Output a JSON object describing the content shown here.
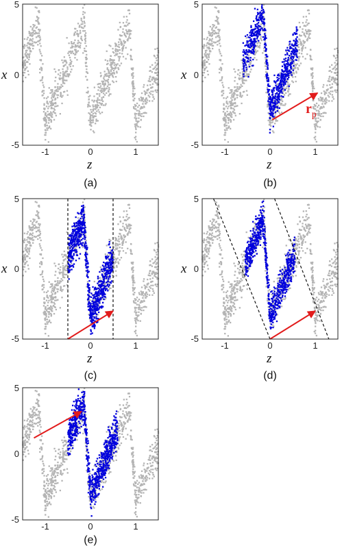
{
  "colors": {
    "background_points": "#b4b4b4",
    "selected_points": "#0000dd",
    "arrow": "#e21b1b",
    "boundary": "#111111"
  },
  "rp_label": {
    "main": "r",
    "subscript": "p"
  },
  "chart_data": [
    {
      "type": "scatter",
      "caption": "(a)",
      "xlabel": "z",
      "ylabel": "x",
      "xlim": [
        -1.5,
        1.5
      ],
      "ylim": [
        -5,
        5
      ],
      "xticks": [
        "-1",
        "0",
        "1"
      ],
      "yticks": [
        "5",
        "0",
        "-5"
      ],
      "series": [
        {
          "color": "gray",
          "pattern": "sawtooth band",
          "x_range": [
            -1.5,
            1.5
          ],
          "y_range": [
            -5,
            5
          ],
          "period": 1.0
        }
      ]
    },
    {
      "type": "scatter",
      "caption": "(b)",
      "xlabel": "z",
      "ylabel": "x",
      "xlim": [
        -1.5,
        1.5
      ],
      "ylim": [
        -5,
        5
      ],
      "xticks": [
        "-1",
        "0",
        "1"
      ],
      "yticks": [
        "5",
        "0",
        "-5"
      ],
      "series": [
        {
          "color": "gray",
          "pattern": "sawtooth band",
          "x_range": [
            -1.5,
            1.5
          ],
          "y_range": [
            -5,
            5
          ]
        },
        {
          "color": "blue",
          "pattern": "selected primitive cell (shifted)",
          "x_range": [
            -0.6,
            0.6
          ],
          "y_range": [
            -4.7,
            5
          ]
        }
      ],
      "arrow": {
        "from": [
          0.05,
          -3.2
        ],
        "to": [
          1.05,
          -1.3
        ],
        "label": "r_p"
      }
    },
    {
      "type": "scatter",
      "caption": "(c)",
      "xlabel": "z",
      "ylabel": "x",
      "xlim": [
        -1.5,
        1.5
      ],
      "ylim": [
        -5,
        5
      ],
      "xticks": [
        "-1",
        "0",
        "1"
      ],
      "yticks": [
        "5",
        "0",
        "-5"
      ],
      "series": [
        {
          "color": "gray",
          "pattern": "sawtooth band",
          "x_range": [
            -1.5,
            1.5
          ],
          "y_range": [
            -5,
            5
          ]
        },
        {
          "color": "blue",
          "pattern": "points between vertical boundaries",
          "x_range": [
            -0.5,
            0.5
          ],
          "y_range": [
            -3.5,
            3.5
          ]
        }
      ],
      "boundaries": [
        {
          "from": [
            -0.5,
            5
          ],
          "to": [
            -0.5,
            -5
          ]
        },
        {
          "from": [
            0.5,
            5
          ],
          "to": [
            0.5,
            -5
          ]
        }
      ],
      "arrow": {
        "from": [
          -0.5,
          -5
        ],
        "to": [
          0.5,
          -3.0
        ]
      }
    },
    {
      "type": "scatter",
      "caption": "(d)",
      "xlabel": "z",
      "ylabel": "x",
      "xlim": [
        -1.5,
        1.5
      ],
      "ylim": [
        -5,
        5
      ],
      "xticks": [
        "-1",
        "0",
        "1"
      ],
      "yticks": [
        "5",
        "0",
        "-5"
      ],
      "series": [
        {
          "color": "gray",
          "pattern": "sawtooth band",
          "x_range": [
            -1.5,
            1.5
          ],
          "y_range": [
            -5,
            5
          ]
        },
        {
          "color": "blue",
          "pattern": "points between slanted boundaries",
          "x_range": [
            -0.5,
            0.5
          ],
          "y_range": [
            -2.5,
            2.5
          ]
        }
      ],
      "boundaries": [
        {
          "from": [
            -1.25,
            5
          ],
          "to": [
            0.0,
            -5
          ]
        },
        {
          "from": [
            0.1,
            5
          ],
          "to": [
            1.3,
            -5
          ]
        }
      ],
      "arrow": {
        "from": [
          0.0,
          -5
        ],
        "to": [
          1.0,
          -3.0
        ]
      }
    },
    {
      "type": "scatter",
      "caption": "(e)",
      "xlabel": "z",
      "ylabel": "x",
      "xlim": [
        -1.5,
        1.5
      ],
      "ylim": [
        -5,
        5
      ],
      "xticks": [
        "-1",
        "0",
        "1"
      ],
      "yticks": [
        "5",
        "0",
        "-5"
      ],
      "series": [
        {
          "color": "gray",
          "pattern": "sawtooth band",
          "x_range": [
            -1.5,
            1.5
          ],
          "y_range": [
            -5,
            5
          ]
        },
        {
          "color": "blue",
          "pattern": "selected cell",
          "x_range": [
            -0.5,
            0.6
          ],
          "y_range": [
            -3.5,
            4.5
          ]
        }
      ],
      "arrow": {
        "from": [
          -1.25,
          1.2
        ],
        "to": [
          -0.2,
          3.2
        ]
      }
    }
  ]
}
